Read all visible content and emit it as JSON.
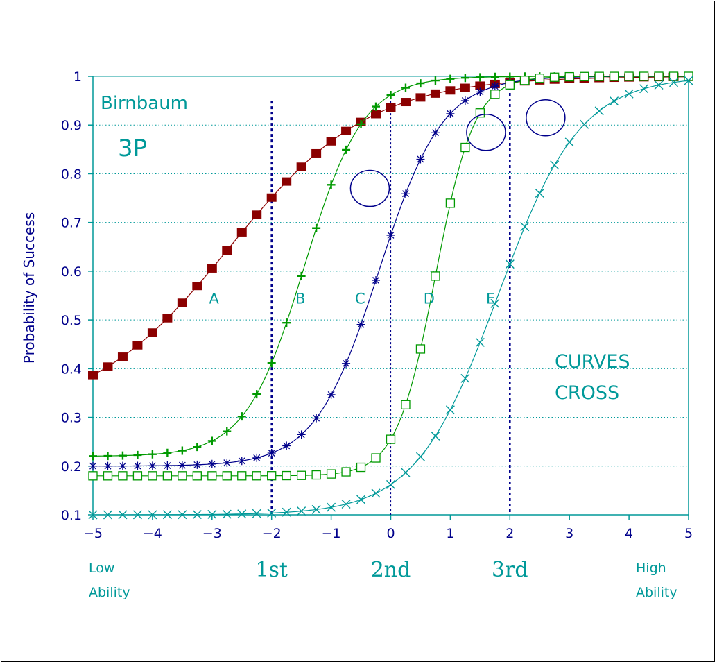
{
  "chart_data": {
    "type": "line",
    "title": "Birnbaum",
    "subtitle": "3P",
    "ylabel": "Probability of Success",
    "xlabel": "",
    "xlim": [
      -5,
      5
    ],
    "ylim": [
      0.1,
      1
    ],
    "xticks": [
      "−5",
      "−4",
      "−3",
      "−2",
      "−1",
      "0",
      "1",
      "2",
      "3",
      "4",
      "5"
    ],
    "yticks": [
      "0.1",
      "0.2",
      "0.3",
      "0.4",
      "0.5",
      "0.6",
      "0.7",
      "0.8",
      "0.9",
      "1"
    ],
    "grid": "horizontal dotted",
    "x_step": 0.25,
    "series": [
      {
        "name": "A",
        "color": "#8b0000",
        "marker": "filled-square",
        "a": 0.5,
        "b": -2.7,
        "c": 0.3,
        "label_x": -3.05,
        "label_y": 0.545
      },
      {
        "name": "B",
        "color": "#009900",
        "marker": "plus",
        "a": 1.2,
        "b": -1.45,
        "c": 0.22,
        "label_x": -1.6,
        "label_y": 0.545
      },
      {
        "name": "C",
        "color": "#00008b",
        "marker": "star",
        "a": 1.1,
        "b": -0.2,
        "c": 0.2,
        "label_x": -0.6,
        "label_y": 0.545
      },
      {
        "name": "D",
        "color": "#009900",
        "marker": "open-square",
        "a": 1.8,
        "b": 0.75,
        "c": 0.18,
        "label_x": 0.55,
        "label_y": 0.545
      },
      {
        "name": "E",
        "color": "#009999",
        "marker": "x",
        "a": 0.85,
        "b": 1.8,
        "c": 0.1,
        "label_x": 1.6,
        "label_y": 0.545
      }
    ],
    "vertical_lines": [
      {
        "x": -2,
        "y_top": 0.95,
        "label": "1st",
        "color": "#00008b"
      },
      {
        "x": 0,
        "y_top": 0.95,
        "label": "2nd",
        "color": "#00008b"
      },
      {
        "x": 2,
        "y_top": 1.0,
        "label": "3rd",
        "color": "#00008b"
      }
    ],
    "circles": [
      {
        "x": -0.35,
        "y": 0.77
      },
      {
        "x": 1.6,
        "y": 0.885
      },
      {
        "x": 2.6,
        "y": 0.915
      }
    ],
    "annotations": {
      "curves_cross": [
        "CURVES",
        "CROSS"
      ],
      "low_ability": [
        "Low",
        "Ability"
      ],
      "high_ability": [
        "High",
        "Ability"
      ]
    }
  }
}
